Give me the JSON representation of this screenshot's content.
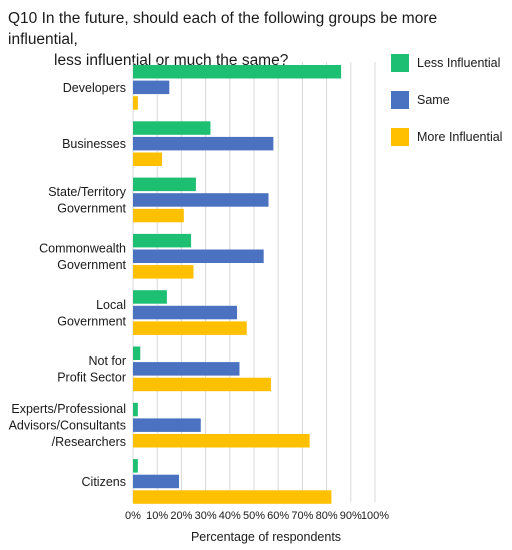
{
  "title_lines": [
    "Q10 In the future, should each of the following groups be more influential,",
    "less influential or much the same?"
  ],
  "chart_data": {
    "type": "bar",
    "orientation": "horizontal",
    "title": "Q10 In the future, should each of the following groups be more influential, less influential or much the same?",
    "xlabel": "Percentage of respondents",
    "ylabel": "",
    "xlim": [
      0,
      100
    ],
    "x_ticks": [
      0,
      10,
      20,
      30,
      40,
      50,
      60,
      70,
      80,
      90,
      100
    ],
    "x_tick_labels": [
      "0%",
      "10%",
      "20%",
      "30%",
      "40%",
      "50%",
      "60%",
      "70%",
      "80%",
      "90%",
      "100%"
    ],
    "grid": true,
    "legend_position": "right",
    "categories": [
      [
        "Developers"
      ],
      [
        "Businesses"
      ],
      [
        "State/Territory",
        "Government"
      ],
      [
        "Commonwealth",
        "Government"
      ],
      [
        "Local",
        "Government"
      ],
      [
        "Not for",
        "Profit Sector"
      ],
      [
        "Experts/Professional",
        "Advisors/Consultants",
        "/Researchers"
      ],
      [
        "Citizens"
      ]
    ],
    "series": [
      {
        "name": "Less Influential",
        "color": "#1dbf73",
        "values": [
          86,
          32,
          26,
          24,
          14,
          3,
          2,
          2
        ]
      },
      {
        "name": "Same",
        "color": "#4a72c0",
        "values": [
          15,
          58,
          56,
          54,
          43,
          44,
          28,
          19
        ]
      },
      {
        "name": "More Influential",
        "color": "#ffc000",
        "values": [
          2,
          12,
          21,
          25,
          47,
          57,
          73,
          82
        ]
      }
    ]
  }
}
